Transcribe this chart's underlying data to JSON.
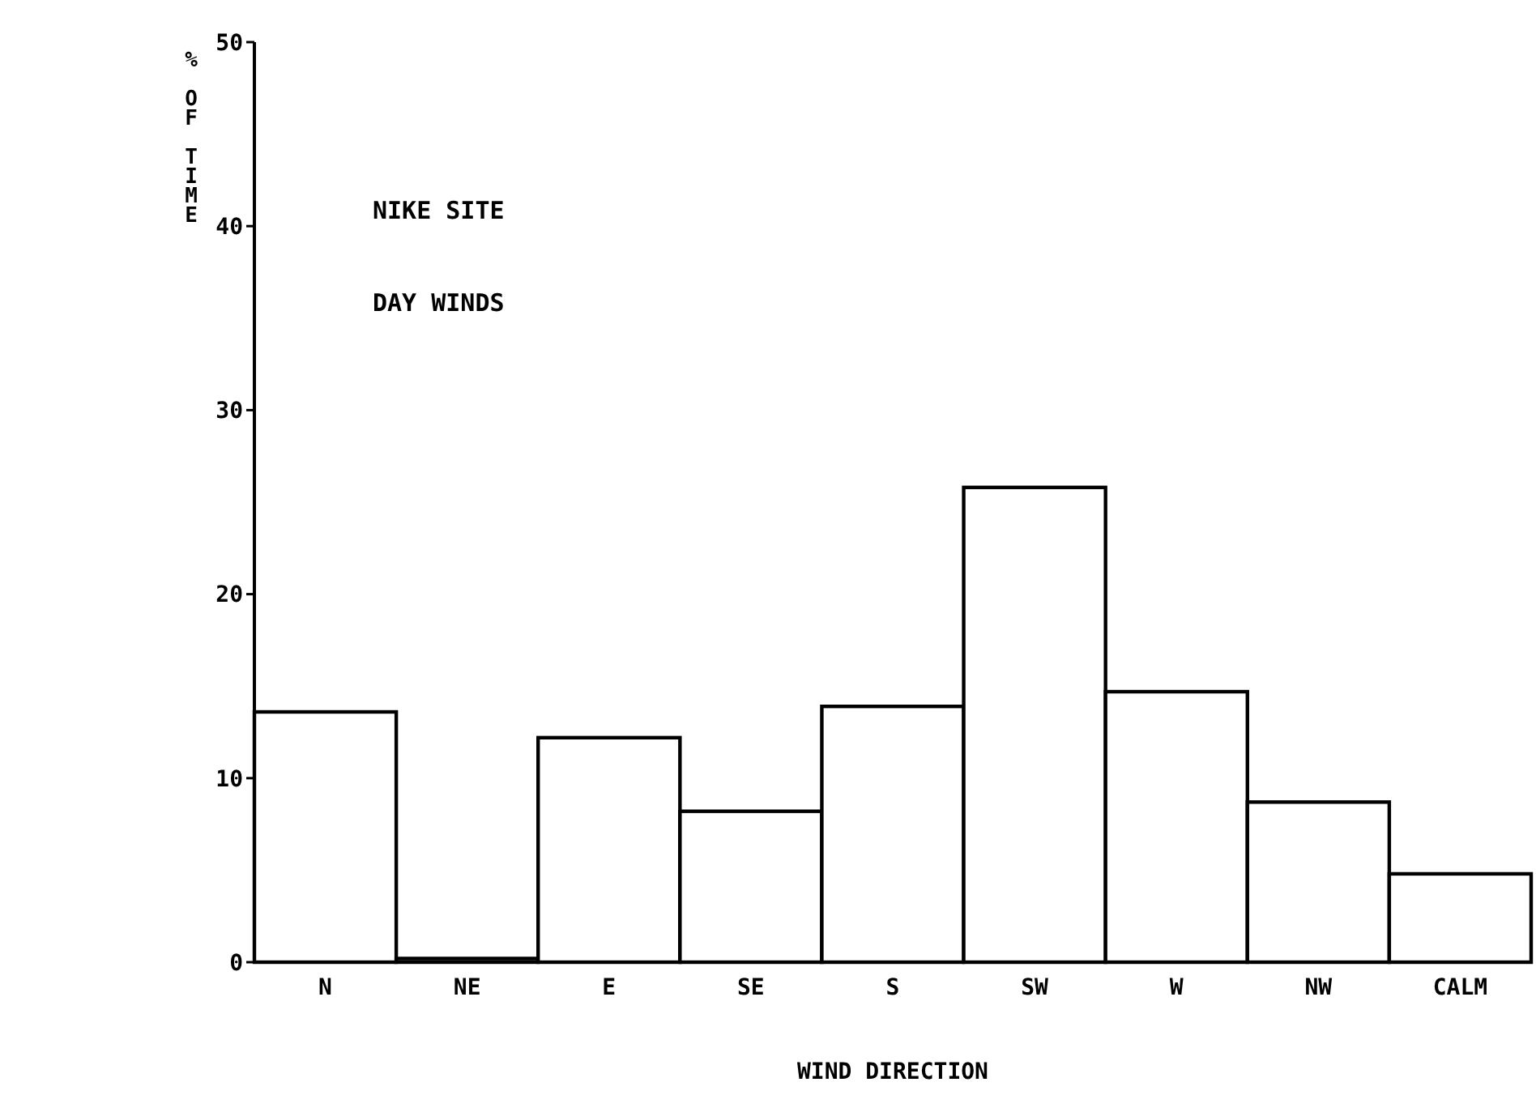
{
  "chart_data": {
    "type": "bar",
    "title": "NIKE SITE",
    "subtitle": "DAY WINDS",
    "xlabel": "WIND DIRECTION",
    "ylabel": "% OF TIME",
    "categories": [
      "N",
      "NE",
      "E",
      "SE",
      "S",
      "SW",
      "W",
      "NW",
      "CALM"
    ],
    "values": [
      13.6,
      0.2,
      12.2,
      8.2,
      13.9,
      25.8,
      14.7,
      8.7,
      4.8
    ],
    "color": "#ffffff",
    "ylim": [
      0,
      50
    ],
    "yticks": [
      0,
      10,
      20,
      30,
      40,
      50
    ],
    "grid": false
  }
}
